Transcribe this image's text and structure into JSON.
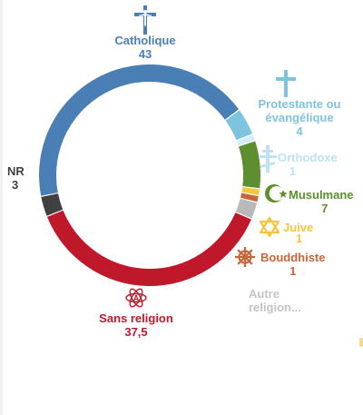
{
  "chart_data": {
    "type": "donut",
    "title": "",
    "segments": [
      {
        "label": "Catholique",
        "value": 43,
        "value_text": "43",
        "color": "#4a7fb5",
        "icon": "latin-cross-with-corpus-icon"
      },
      {
        "label": "Protestante ou évangélique",
        "value": 4,
        "value_text": "4",
        "color": "#7ec4de",
        "icon": "latin-cross-icon"
      },
      {
        "label": "Orthodoxe",
        "value": 1,
        "value_text": "1",
        "color": "#d4ecf7",
        "icon": "orthodox-cross-icon"
      },
      {
        "label": "Musulmane",
        "value": 7,
        "value_text": "7",
        "color": "#5d8e2f",
        "icon": "crescent-star-icon"
      },
      {
        "label": "Juive",
        "value": 1,
        "value_text": "1",
        "color": "#f3c73b",
        "icon": "star-of-david-icon"
      },
      {
        "label": "Bouddhiste",
        "value": 1,
        "value_text": "1",
        "color": "#c8663a",
        "icon": "dharma-wheel-icon"
      },
      {
        "label": "Autre religion...",
        "value": 2.5,
        "value_text": "",
        "color": "#b9b9b9",
        "icon": ""
      },
      {
        "label": "Sans religion",
        "value": 37.5,
        "value_text": "37,5",
        "color": "#c0182b",
        "icon": "atom-icon"
      },
      {
        "label": "NR",
        "value": 3,
        "value_text": "3",
        "color": "#404040",
        "icon": ""
      }
    ],
    "legend": "labels around the ring"
  }
}
